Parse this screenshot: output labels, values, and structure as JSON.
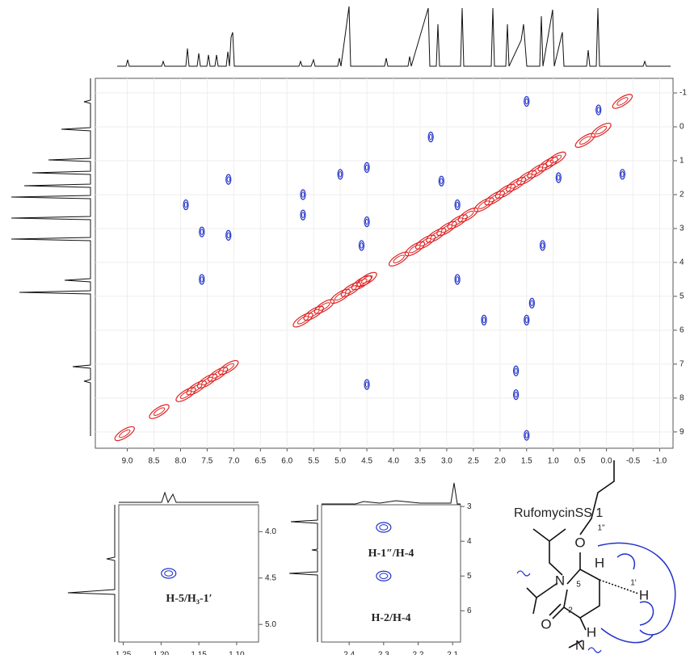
{
  "chart_data": [
    {
      "type": "contour",
      "xlim": [
        9.6,
        -1.25
      ],
      "ylim": [
        -1.43,
        9.48
      ],
      "xticks": [
        {
          "value": 9,
          "label": "9.0"
        },
        8.5,
        {
          "value": 8,
          "label": "8.0"
        },
        7.5,
        {
          "value": 7,
          "label": "7.0"
        },
        6.5,
        {
          "value": 6,
          "label": "6.0"
        },
        5.5,
        {
          "value": 5,
          "label": "5.0"
        },
        4.5,
        {
          "value": 4,
          "label": "4.0"
        },
        3.5,
        {
          "value": 3,
          "label": "3.0"
        },
        2.5,
        {
          "value": 2,
          "label": "2.0"
        },
        1.5,
        {
          "value": 1,
          "label": "1.0"
        },
        0.5,
        {
          "value": 0,
          "label": "0.0"
        },
        -0.5,
        {
          "value": -1,
          "label": "-1.0"
        }
      ],
      "yticks": [
        -1,
        0,
        1,
        2,
        3,
        4,
        5,
        6,
        7,
        8,
        9
      ],
      "series": [
        {
          "color": "#e02424",
          "x": [
            9.05,
            8.4,
            7.9,
            7.7,
            7.5,
            7.3,
            7.1,
            5.7,
            5.5,
            5.3,
            5.0,
            4.8,
            4.6,
            4.5,
            3.9,
            3.6,
            3.4,
            3.2,
            3.0,
            2.8,
            2.6,
            2.3,
            2.1,
            1.9,
            1.7,
            1.5,
            1.3,
            1.1,
            0.95,
            0.4,
            0.1,
            -0.3
          ],
          "y": [
            9.05,
            8.4,
            7.9,
            7.7,
            7.5,
            7.3,
            7.1,
            5.7,
            5.5,
            5.3,
            5.0,
            4.8,
            4.6,
            4.5,
            3.9,
            3.6,
            3.4,
            3.2,
            3.0,
            2.8,
            2.6,
            2.3,
            2.1,
            1.9,
            1.7,
            1.5,
            1.3,
            1.1,
            0.95,
            0.4,
            0.1,
            -0.75
          ]
        },
        {
          "color": "#2233c8",
          "x": [
            1.5,
            0.15,
            -0.3,
            7.1,
            7.1,
            7.6,
            7.6,
            7.9,
            5.7,
            5.7,
            5.0,
            4.5,
            4.5,
            4.5,
            4.6,
            3.1,
            2.8,
            2.8,
            1.7,
            1.5,
            1.4,
            1.2,
            0.9,
            2.3,
            1.7,
            1.5,
            3.3
          ],
          "y": [
            -0.75,
            -0.5,
            1.4,
            1.55,
            3.2,
            3.1,
            4.5,
            2.3,
            2.0,
            2.6,
            1.4,
            1.2,
            7.6,
            2.8,
            3.5,
            1.6,
            2.3,
            4.5,
            7.2,
            5.7,
            5.2,
            3.5,
            1.5,
            5.7,
            7.9,
            9.1,
            0.3
          ]
        }
      ]
    },
    {
      "type": "contour",
      "xlim": [
        1.256,
        1.071
      ],
      "ylim": [
        3.71,
        5.19
      ],
      "xticks": [
        1.25,
        {
          "value": 1.2,
          "label": "1.20"
        },
        1.15,
        {
          "value": 1.1,
          "label": "1.10"
        }
      ],
      "yticks": [
        {
          "value": 4,
          "label": "4.0"
        },
        4.5,
        {
          "value": 5,
          "label": "5.0"
        }
      ],
      "series": [
        {
          "color": "#2233c8",
          "x": [
            1.19
          ],
          "y": [
            4.45
          ]
        }
      ],
      "annotations": [
        "H-5/H₃-1′"
      ]
    },
    {
      "type": "contour",
      "xlim": [
        2.48,
        2.077
      ],
      "ylim": [
        2.95,
        6.9
      ],
      "xticks": [
        2.4,
        2.3,
        2.2,
        2.1
      ],
      "yticks": [
        3,
        4,
        5,
        6
      ],
      "series": [
        {
          "color": "#2233c8",
          "x": [
            2.3,
            2.3
          ],
          "y": [
            3.6,
            5.0
          ]
        }
      ],
      "annotations": [
        "H-1″/H-4",
        "H-2/H-4"
      ]
    }
  ],
  "structure": {
    "title": "RufomycinSS 1",
    "atoms": [
      "O",
      "N",
      "O",
      "H",
      "H",
      "H",
      "N"
    ],
    "locants": [
      "1\"",
      "5",
      "1'",
      "2"
    ]
  }
}
